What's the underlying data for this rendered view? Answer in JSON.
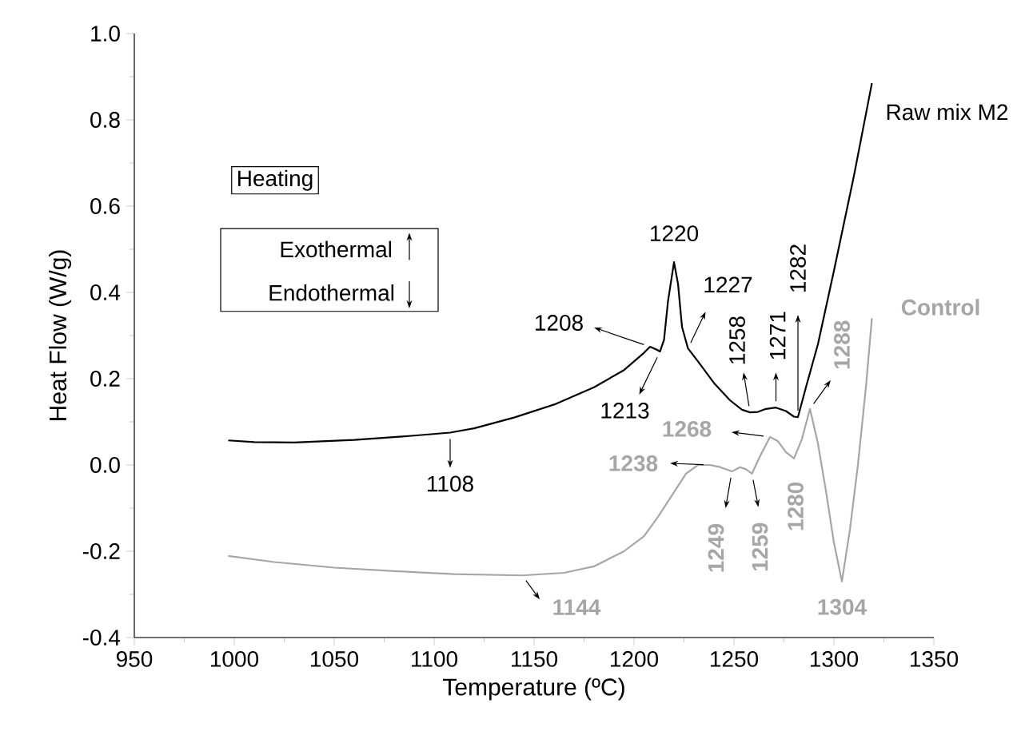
{
  "chart_data": {
    "type": "line",
    "xlabel": "Temperature (ºC)",
    "ylabel": "Heat Flow (W/g)",
    "xlim": [
      950,
      1350
    ],
    "xticks": [
      950,
      1000,
      1050,
      1100,
      1150,
      1200,
      1250,
      1300,
      1350
    ],
    "ylim": [
      -0.4,
      1.0
    ],
    "yticks": [
      {
        "value": -0.4,
        "label": "-0.4"
      },
      {
        "value": -0.2,
        "label": "-0.2"
      },
      {
        "value": 0,
        "label": "0.0"
      },
      {
        "value": 0.2,
        "label": "0.2"
      },
      {
        "value": 0.4,
        "label": "0.4"
      },
      {
        "value": 0.6,
        "label": "0.6"
      },
      {
        "value": 0.8,
        "label": "0.8"
      },
      {
        "value": 1.0,
        "label": "1.0"
      }
    ],
    "series": [
      {
        "name": "Raw mix M2",
        "color": "#000000",
        "x": [
          997,
          1010,
          1030,
          1060,
          1090,
          1108,
          1120,
          1140,
          1160,
          1180,
          1195,
          1205,
          1208,
          1211,
          1213,
          1215,
          1217,
          1220,
          1222,
          1224,
          1227,
          1232,
          1240,
          1248,
          1254,
          1258,
          1262,
          1266,
          1271,
          1276,
          1280,
          1282,
          1286,
          1292,
          1300,
          1310,
          1319
        ],
        "values": [
          0.057,
          0.053,
          0.052,
          0.058,
          0.068,
          0.075,
          0.085,
          0.11,
          0.14,
          0.18,
          0.22,
          0.26,
          0.274,
          0.268,
          0.263,
          0.29,
          0.38,
          0.47,
          0.42,
          0.32,
          0.27,
          0.24,
          0.19,
          0.15,
          0.128,
          0.122,
          0.123,
          0.13,
          0.133,
          0.125,
          0.112,
          0.111,
          0.18,
          0.28,
          0.45,
          0.67,
          0.885
        ]
      },
      {
        "name": "Control",
        "color": "#a6a6a6",
        "x": [
          997,
          1020,
          1050,
          1080,
          1110,
          1144,
          1165,
          1180,
          1195,
          1205,
          1212,
          1219,
          1226,
          1232,
          1238,
          1243,
          1249,
          1253,
          1256,
          1259,
          1263,
          1268,
          1272,
          1276,
          1280,
          1284,
          1288,
          1292,
          1296,
          1300,
          1304,
          1308,
          1312,
          1316,
          1319
        ],
        "values": [
          -0.211,
          -0.225,
          -0.238,
          -0.246,
          -0.253,
          -0.256,
          -0.25,
          -0.235,
          -0.2,
          -0.165,
          -0.12,
          -0.07,
          -0.02,
          0.0,
          0.0,
          -0.005,
          -0.015,
          -0.005,
          -0.01,
          -0.02,
          0.02,
          0.065,
          0.055,
          0.03,
          0.015,
          0.06,
          0.13,
          0.05,
          -0.06,
          -0.18,
          -0.27,
          -0.15,
          0.0,
          0.18,
          0.34
        ]
      }
    ],
    "annotations": [
      {
        "text": "1108",
        "x": 1108,
        "y": 0.075
      },
      {
        "text": "1208",
        "x": 1208,
        "y": 0.274
      },
      {
        "text": "1213",
        "x": 1213,
        "y": 0.263
      },
      {
        "text": "1220",
        "x": 1220,
        "y": 0.47
      },
      {
        "text": "1227",
        "x": 1227,
        "y": 0.27
      },
      {
        "text": "1258",
        "x": 1258,
        "y": 0.122
      },
      {
        "text": "1271",
        "x": 1271,
        "y": 0.133
      },
      {
        "text": "1282",
        "x": 1282,
        "y": 0.111
      },
      {
        "text": "1288",
        "x": 1288,
        "y": 0.13
      },
      {
        "text": "1268",
        "x": 1268,
        "y": 0.065
      },
      {
        "text": "1238",
        "x": 1238,
        "y": 0.0
      },
      {
        "text": "1249",
        "x": 1249,
        "y": -0.015
      },
      {
        "text": "1259",
        "x": 1259,
        "y": -0.02
      },
      {
        "text": "1280",
        "x": 1280,
        "y": 0.015
      },
      {
        "text": "1304",
        "x": 1304,
        "y": -0.27
      },
      {
        "text": "1144",
        "x": 1144,
        "y": -0.256
      },
      "Heating",
      "Exothermal",
      "Endothermal"
    ]
  }
}
